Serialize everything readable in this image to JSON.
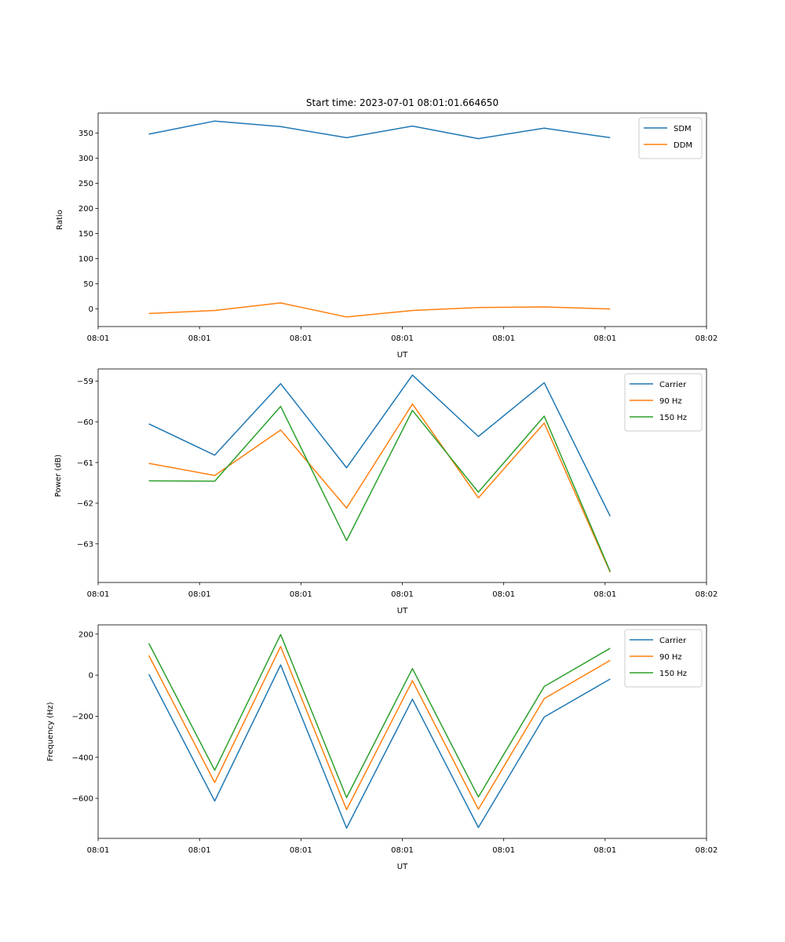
{
  "chart_data": [
    {
      "type": "line",
      "title": "Start time: 2023-07-01 08:01:01.664650",
      "xlabel": "UT",
      "ylabel": "Ratio",
      "x_tick_labels": [
        "08:01",
        "08:01",
        "08:01",
        "08:01",
        "08:01",
        "08:01",
        "08:02"
      ],
      "y_ticks": [
        0,
        50,
        100,
        150,
        200,
        250,
        300,
        350
      ],
      "y_tick_labels": [
        "0",
        "50",
        "100",
        "150",
        "200",
        "250",
        "300",
        "350"
      ],
      "xlim": [
        0,
        6
      ],
      "ylim": [
        -35,
        390
      ],
      "legend_position": "top-right",
      "x": [
        0.5,
        1.15,
        1.8,
        2.45,
        3.1,
        3.75,
        4.4,
        5.05
      ],
      "series": [
        {
          "name": "SDM",
          "color": "#1f77b4",
          "values": [
            348,
            374,
            363,
            341,
            364,
            339,
            360,
            341
          ]
        },
        {
          "name": "DDM",
          "color": "#ff7f0e",
          "values": [
            -9,
            -3,
            12,
            -16,
            -3,
            3,
            4,
            0
          ]
        }
      ]
    },
    {
      "type": "line",
      "title": "",
      "xlabel": "UT",
      "ylabel": "Power (dB)",
      "x_tick_labels": [
        "08:01",
        "08:01",
        "08:01",
        "08:01",
        "08:01",
        "08:01",
        "08:02"
      ],
      "y_ticks": [
        -63,
        -62,
        -61,
        -60,
        -59
      ],
      "y_tick_labels": [
        "−63",
        "−62",
        "−61",
        "−60",
        "−59"
      ],
      "xlim": [
        0,
        6
      ],
      "ylim": [
        -63.95,
        -58.7
      ],
      "legend_position": "top-right",
      "x": [
        0.5,
        1.15,
        1.8,
        2.45,
        3.1,
        3.75,
        4.4,
        5.05
      ],
      "series": [
        {
          "name": "Carrier",
          "color": "#1f77b4",
          "values": [
            -60.05,
            -60.82,
            -59.06,
            -61.13,
            -58.85,
            -60.36,
            -59.04,
            -62.32
          ]
        },
        {
          "name": "90 Hz",
          "color": "#ff7f0e",
          "values": [
            -61.02,
            -61.32,
            -60.2,
            -62.12,
            -59.56,
            -61.87,
            -60.03,
            -63.7
          ]
        },
        {
          "name": "150 Hz",
          "color": "#2ca02c",
          "values": [
            -61.45,
            -61.46,
            -59.62,
            -62.92,
            -59.72,
            -61.73,
            -59.86,
            -63.68
          ]
        }
      ]
    },
    {
      "type": "line",
      "title": "",
      "xlabel": "UT",
      "ylabel": "Frequency (Hz)",
      "x_tick_labels": [
        "08:01",
        "08:01",
        "08:01",
        "08:01",
        "08:01",
        "08:01",
        "08:02"
      ],
      "y_ticks": [
        -600,
        -400,
        -200,
        0,
        200
      ],
      "y_tick_labels": [
        "−600",
        "−400",
        "−200",
        "0",
        "200"
      ],
      "xlim": [
        0,
        6
      ],
      "ylim": [
        -795,
        245
      ],
      "legend_position": "top-right",
      "x": [
        0.5,
        1.15,
        1.8,
        2.45,
        3.1,
        3.75,
        4.4,
        5.05
      ],
      "series": [
        {
          "name": "Carrier",
          "color": "#1f77b4",
          "values": [
            5,
            -613,
            50,
            -745,
            -117,
            -742,
            -204,
            -19
          ]
        },
        {
          "name": "90 Hz",
          "color": "#ff7f0e",
          "values": [
            96,
            -523,
            140,
            -655,
            -27,
            -653,
            -114,
            72
          ]
        },
        {
          "name": "150 Hz",
          "color": "#2ca02c",
          "values": [
            155,
            -463,
            198,
            -596,
            32,
            -593,
            -55,
            131
          ]
        }
      ]
    }
  ]
}
